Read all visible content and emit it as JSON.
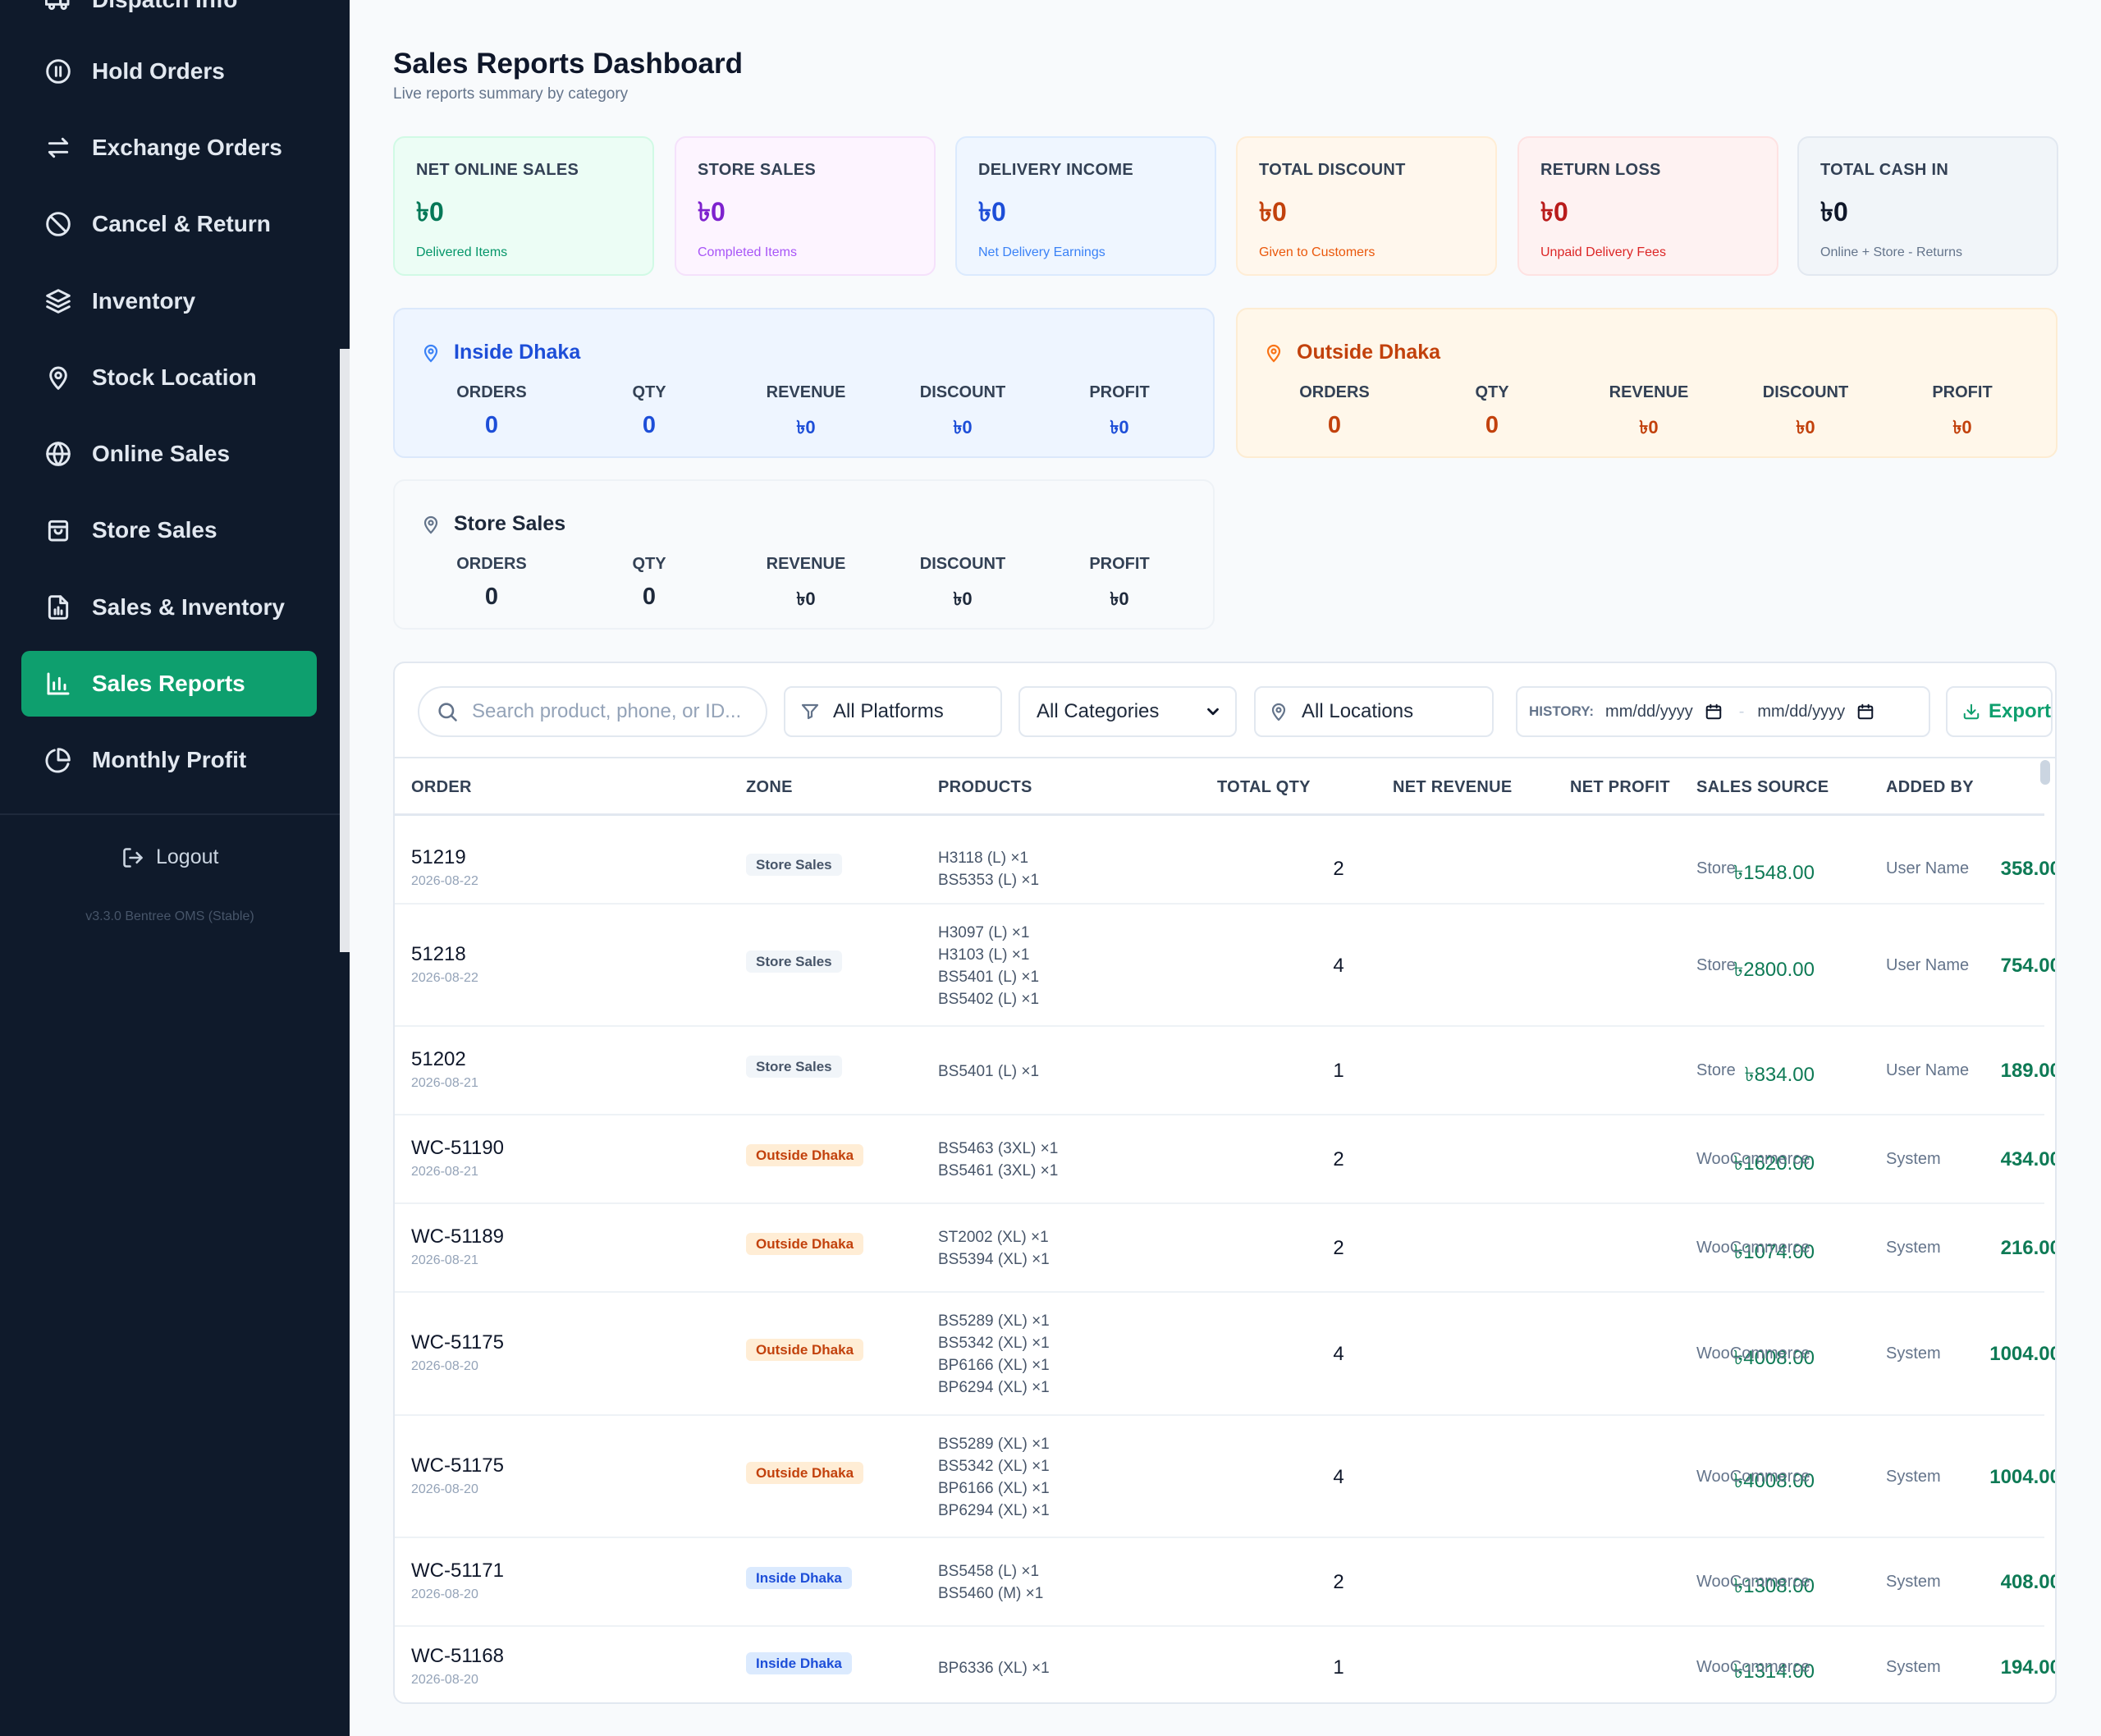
{
  "sidebar": {
    "items": [
      {
        "label": "Dispatch Info",
        "icon": "truck-icon"
      },
      {
        "label": "Hold Orders",
        "icon": "pause-circle-icon"
      },
      {
        "label": "Exchange Orders",
        "icon": "exchange-arrows-icon"
      },
      {
        "label": "Cancel & Return",
        "icon": "ban-icon"
      },
      {
        "label": "Inventory",
        "icon": "layers-icon"
      },
      {
        "label": "Stock Location",
        "icon": "map-pin-icon"
      },
      {
        "label": "Online Sales",
        "icon": "globe-icon"
      },
      {
        "label": "Store Sales",
        "icon": "shopping-bag-icon"
      },
      {
        "label": "Sales & Inventory",
        "icon": "file-chart-icon"
      },
      {
        "label": "Sales Reports",
        "icon": "bar-chart-icon"
      },
      {
        "label": "Monthly Profit",
        "icon": "pie-chart-icon"
      }
    ],
    "active": "Sales Reports",
    "logout_label": "Logout",
    "version": "v3.3.0 Bentree OMS (Stable)"
  },
  "header": {
    "title": "Sales Reports Dashboard",
    "subtitle": "Live reports summary by category"
  },
  "kpis": [
    {
      "label": "NET ONLINE SALES",
      "value": "৳0",
      "note": "Delivered Items"
    },
    {
      "label": "STORE SALES",
      "value": "৳0",
      "note": "Completed Items"
    },
    {
      "label": "DELIVERY INCOME",
      "value": "৳0",
      "note": "Net Delivery Earnings"
    },
    {
      "label": "TOTAL DISCOUNT",
      "value": "৳0",
      "note": "Given to Customers"
    },
    {
      "label": "RETURN LOSS",
      "value": "৳0",
      "note": "Unpaid Delivery Fees"
    },
    {
      "label": "TOTAL CASH IN",
      "value": "৳0",
      "note": "Online + Store - Returns"
    }
  ],
  "zones": {
    "column_labels": [
      "ORDERS",
      "QTY",
      "REVENUE",
      "DISCOUNT",
      "PROFIT"
    ],
    "inside": {
      "title": "Inside Dhaka",
      "values": [
        "0",
        "0",
        "৳0",
        "৳0",
        "৳0"
      ]
    },
    "outside": {
      "title": "Outside Dhaka",
      "values": [
        "0",
        "0",
        "৳0",
        "৳0",
        "৳0"
      ]
    },
    "store": {
      "title": "Store Sales",
      "values": [
        "0",
        "0",
        "৳0",
        "৳0",
        "৳0"
      ]
    }
  },
  "filters": {
    "search_placeholder": "Search product, phone, or ID...",
    "platforms": "All Platforms",
    "categories": "All Categories",
    "locations": "All Locations",
    "history_label": "HISTORY:",
    "date_from": "mm/dd/yyyy",
    "date_to": "mm/dd/yyyy",
    "export_label": "Export"
  },
  "table": {
    "headers": [
      "ORDER",
      "ZONE",
      "PRODUCTS",
      "TOTAL QTY",
      "NET REVENUE",
      "NET PROFIT",
      "SALES SOURCE",
      "ADDED BY"
    ],
    "rows": [
      {
        "order": "51219",
        "date": "2026-08-22",
        "zone": "Store Sales",
        "zone_type": "store",
        "products": [
          "H3118 (L) ×1",
          "BS5353 (L) ×1"
        ],
        "qty": "2",
        "revenue": "৳1548.00",
        "profit": "358.00",
        "source": "Store",
        "added_by": "User Name"
      },
      {
        "order": "51218",
        "date": "2026-08-22",
        "zone": "Store Sales",
        "zone_type": "store",
        "products": [
          "H3097 (L) ×1",
          "H3103 (L) ×1",
          "BS5401 (L) ×1",
          "BS5402 (L) ×1"
        ],
        "qty": "4",
        "revenue": "৳2800.00",
        "profit": "754.00",
        "source": "Store",
        "added_by": "User Name"
      },
      {
        "order": "51202",
        "date": "2026-08-21",
        "zone": "Store Sales",
        "zone_type": "store",
        "products": [
          "BS5401 (L) ×1"
        ],
        "qty": "1",
        "revenue": "৳834.00",
        "profit": "189.00",
        "source": "Store",
        "added_by": "User Name"
      },
      {
        "order": "WC-51190",
        "date": "2026-08-21",
        "zone": "Outside Dhaka",
        "zone_type": "outside",
        "products": [
          "BS5463 (3XL) ×1",
          "BS5461 (3XL) ×1"
        ],
        "qty": "2",
        "revenue": "৳1620.00",
        "profit": "434.00",
        "source": "WooCommerce",
        "added_by": "System"
      },
      {
        "order": "WC-51189",
        "date": "2026-08-21",
        "zone": "Outside Dhaka",
        "zone_type": "outside",
        "products": [
          "ST2002 (XL) ×1",
          "BS5394 (XL) ×1"
        ],
        "qty": "2",
        "revenue": "৳1074.00",
        "profit": "216.00",
        "source": "WooCommerce",
        "added_by": "System"
      },
      {
        "order": "WC-51175",
        "date": "2026-08-20",
        "zone": "Outside Dhaka",
        "zone_type": "outside",
        "products": [
          "BS5289 (XL) ×1",
          "BS5342 (XL) ×1",
          "BP6166 (XL) ×1",
          "BP6294 (XL) ×1"
        ],
        "qty": "4",
        "revenue": "৳4008.00",
        "profit": "1004.00",
        "source": "WooCommerce",
        "added_by": "System"
      },
      {
        "order": "WC-51175",
        "date": "2026-08-20",
        "zone": "Outside Dhaka",
        "zone_type": "outside",
        "products": [
          "BS5289 (XL) ×1",
          "BS5342 (XL) ×1",
          "BP6166 (XL) ×1",
          "BP6294 (XL) ×1"
        ],
        "qty": "4",
        "revenue": "৳4008.00",
        "profit": "1004.00",
        "source": "WooCommerce",
        "added_by": "System"
      },
      {
        "order": "WC-51171",
        "date": "2026-08-20",
        "zone": "Inside Dhaka",
        "zone_type": "inside",
        "products": [
          "BS5458 (L) ×1",
          "BS5460 (M) ×1"
        ],
        "qty": "2",
        "revenue": "৳1308.00",
        "profit": "408.00",
        "source": "WooCommerce",
        "added_by": "System"
      },
      {
        "order": "WC-51168",
        "date": "2026-08-20",
        "zone": "Inside Dhaka",
        "zone_type": "inside",
        "products": [
          "BP6336 (XL) ×1"
        ],
        "qty": "1",
        "revenue": "৳1314.00",
        "profit": "194.00",
        "source": "WooCommerce",
        "added_by": "System"
      }
    ]
  },
  "colors": {
    "sidebar_bg": "#0f1a2b",
    "accent_green": "#0e9f6e",
    "inside_blue": "#1d4ed8",
    "outside_orange": "#c2410c"
  }
}
